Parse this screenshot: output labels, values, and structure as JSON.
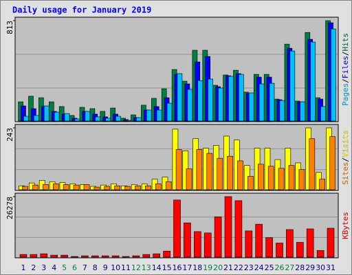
{
  "title": "Daily usage for January 2019",
  "legend_separator": "/",
  "chart_data": [
    {
      "type": "bar",
      "ylim": [
        0,
        813
      ],
      "yticks": [
        813
      ],
      "series": [
        {
          "name": "Hits",
          "color": "#008040",
          "values": [
            160,
            205,
            193,
            160,
            122,
            50,
            116,
            105,
            83,
            110,
            28,
            55,
            133,
            188,
            265,
            420,
            326,
            575,
            575,
            293,
            376,
            414,
            238,
            381,
            381,
            182,
            624,
            166,
            718,
            193,
            813
          ]
        },
        {
          "name": "Files",
          "color": "#0000FF",
          "values": [
            127,
            105,
            122,
            83,
            61,
            28,
            83,
            61,
            39,
            61,
            17,
            33,
            94,
            122,
            193,
            381,
            304,
            481,
            525,
            282,
            370,
            387,
            227,
            359,
            359,
            177,
            591,
            160,
            663,
            182,
            796
          ]
        },
        {
          "name": "Pages",
          "color": "#00C0FF",
          "values": [
            44,
            50,
            127,
            77,
            66,
            22,
            83,
            39,
            28,
            44,
            11,
            33,
            94,
            94,
            149,
            387,
            260,
            331,
            343,
            271,
            365,
            381,
            232,
            304,
            309,
            171,
            569,
            160,
            641,
            122,
            746
          ]
        }
      ]
    },
    {
      "type": "bar",
      "ylim": [
        0,
        243
      ],
      "yticks": [
        243
      ],
      "series": [
        {
          "name": "Visits",
          "color": "#FFFF00",
          "values": [
            18,
            29,
            39,
            34,
            31,
            26,
            23,
            16,
            21,
            26,
            18,
            23,
            26,
            44,
            52,
            238,
            154,
            201,
            164,
            175,
            211,
            196,
            97,
            164,
            164,
            120,
            164,
            107,
            243,
            70,
            243
          ]
        },
        {
          "name": "Sites",
          "color": "#FF8000",
          "values": [
            16,
            21,
            23,
            26,
            23,
            21,
            23,
            13,
            16,
            18,
            16,
            18,
            18,
            26,
            34,
            159,
            84,
            159,
            144,
            125,
            133,
            115,
            55,
            102,
            94,
            86,
            97,
            81,
            201,
            44,
            209
          ]
        }
      ]
    },
    {
      "type": "bar",
      "ylim": [
        0,
        26278
      ],
      "yticks": [
        26278
      ],
      "categories": [
        "1",
        "2",
        "3",
        "4",
        "5",
        "6",
        "7",
        "8",
        "9",
        "10",
        "11",
        "12",
        "13",
        "14",
        "15",
        "16",
        "17",
        "18",
        "19",
        "20",
        "21",
        "22",
        "23",
        "24",
        "25",
        "26",
        "27",
        "28",
        "29",
        "30",
        "31"
      ],
      "category_colors": [
        "#000080",
        "#000080",
        "#000080",
        "#000080",
        "#008040",
        "#008040",
        "#000080",
        "#000080",
        "#000080",
        "#000080",
        "#000080",
        "#008040",
        "#008040",
        "#000080",
        "#000080",
        "#000080",
        "#000080",
        "#000080",
        "#008040",
        "#008040",
        "#000080",
        "#000080",
        "#000080",
        "#000080",
        "#000080",
        "#008040",
        "#008040",
        "#000080",
        "#000080",
        "#000080",
        "#000080"
      ],
      "series": [
        {
          "name": "KBytes",
          "color": "#FF0000",
          "values": [
            1444,
            1444,
            1733,
            1155,
            1155,
            578,
            866,
            866,
            866,
            866,
            578,
            866,
            1444,
            1733,
            2888,
            24834,
            15016,
            11263,
            10685,
            17616,
            26278,
            24545,
            11552,
            14438,
            8664,
            6353,
            12129,
            6642,
            12418,
            3177,
            12707
          ]
        }
      ]
    }
  ]
}
